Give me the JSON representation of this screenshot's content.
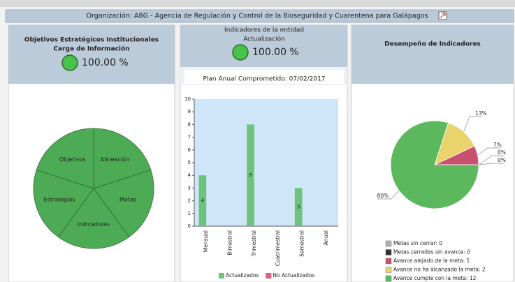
{
  "header": {
    "title": "Organización: ABG - Agencia de Regulación y Control de la Bioseguridad y Cuarentena para Galápagos"
  },
  "panels": [
    {
      "title": "Objetivos Estratégicos Institucionales",
      "subtitle": "Carga de Información",
      "value": "100.00 %"
    },
    {
      "title": "Indicadores de la entidad",
      "subtitle": "Actualización",
      "value": "100.00 %",
      "note": "Plan Anual Comprometido: 07/02/2017"
    },
    {
      "title": "Desempeño de Indicadores"
    }
  ],
  "chart_data": [
    {
      "type": "pie",
      "categories": [
        "Alineación",
        "Metas",
        "Indicadores",
        "Estrategias",
        "Objetivos"
      ],
      "values": [
        20,
        20,
        20,
        20,
        20
      ],
      "color": "#4dab56"
    },
    {
      "type": "bar",
      "categories": [
        "Mensual",
        "Bimestral",
        "Trimestral",
        "Cuatrimestral",
        "Semestral",
        "Anual"
      ],
      "series": [
        {
          "name": "Actualizados",
          "color": "#6cc47c",
          "values": [
            4,
            0,
            8,
            0,
            3,
            0
          ]
        },
        {
          "name": "No Actualizados",
          "color": "#d9607e",
          "values": [
            0,
            0,
            0,
            0,
            0,
            0
          ]
        }
      ],
      "ylim": [
        0,
        10
      ],
      "yticks": [
        0,
        1,
        2,
        3,
        4,
        5,
        6,
        7,
        8,
        9,
        10
      ]
    },
    {
      "type": "pie",
      "categories": [
        "Metas sin cerrar: 0",
        "Metas cerradas sin avance: 0",
        "Avance alejado de la meta: 1",
        "Avance no ha alcanzado la meta: 2",
        "Avance cumple con la meta: 12"
      ],
      "values": [
        0,
        0,
        7,
        13,
        80
      ],
      "value_labels": [
        "0%",
        "0%",
        "7%",
        "13%",
        "80%"
      ],
      "colors": [
        "#b0b0b0",
        "#333333",
        "#c9506f",
        "#e8d46a",
        "#5cb85c"
      ]
    }
  ]
}
